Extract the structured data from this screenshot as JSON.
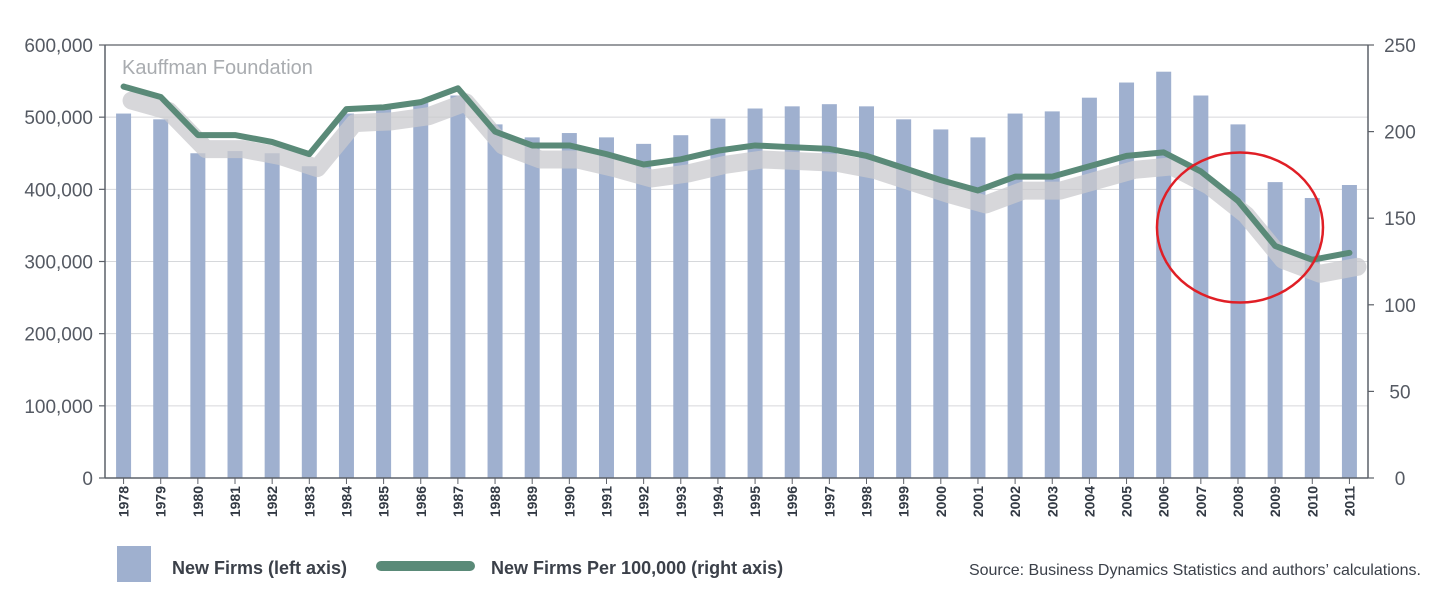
{
  "chart_data": {
    "type": "bar",
    "title": "",
    "watermark": "Kauffman Foundation",
    "categories": [
      "1978",
      "1979",
      "1980",
      "1981",
      "1982",
      "1983",
      "1984",
      "1985",
      "1986",
      "1987",
      "1988",
      "1989",
      "1990",
      "1991",
      "1992",
      "1993",
      "1994",
      "1995",
      "1996",
      "1997",
      "1998",
      "1999",
      "2000",
      "2001",
      "2002",
      "2003",
      "2004",
      "2005",
      "2006",
      "2007",
      "2008",
      "2009",
      "2010",
      "2011"
    ],
    "series": [
      {
        "name": "New Firms (left axis)",
        "type": "bar",
        "axis": "left",
        "color": "#9fb0cf",
        "values": [
          505000,
          497000,
          450000,
          453000,
          450000,
          432000,
          505000,
          512000,
          520000,
          530000,
          490000,
          472000,
          478000,
          472000,
          463000,
          475000,
          498000,
          512000,
          515000,
          518000,
          515000,
          497000,
          483000,
          472000,
          505000,
          508000,
          527000,
          548000,
          563000,
          530000,
          490000,
          410000,
          388000,
          406000
        ]
      },
      {
        "name": "New Firms Per 100,000 (right axis)",
        "type": "line",
        "axis": "right",
        "color": "#5a8a78",
        "values": [
          226,
          220,
          198,
          198,
          194,
          187,
          213,
          214,
          217,
          225,
          200,
          192,
          192,
          187,
          181,
          184,
          189,
          192,
          191,
          190,
          186,
          179,
          172,
          166,
          174,
          174,
          180,
          186,
          188,
          177,
          160,
          134,
          126,
          130
        ]
      }
    ],
    "y_left": {
      "ticks": [
        "0",
        "100,000",
        "200,000",
        "300,000",
        "400,000",
        "500,000",
        "600,000"
      ],
      "ylim": [
        0,
        600000
      ]
    },
    "y_right": {
      "ticks": [
        "0",
        "50",
        "100",
        "150",
        "200",
        "250"
      ],
      "ylim": [
        0,
        250
      ]
    },
    "legend_position": "bottom",
    "annotation": "red circle around 2007-2010 decline",
    "source": "Source: Business Dynamics Statistics and authors’ calculations.",
    "grid": true
  },
  "colors": {
    "bar": "#9fb0cf",
    "line": "#5a8a78",
    "shadow": "#c9cacd",
    "grid": "#d6d8db",
    "axis": "#5c6068",
    "circle": "#e01f26"
  }
}
